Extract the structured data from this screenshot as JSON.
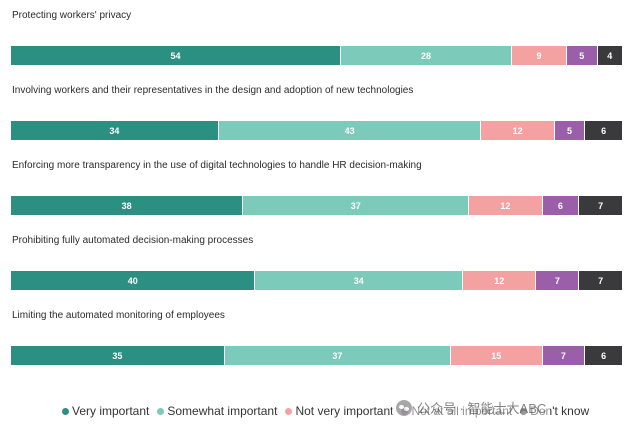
{
  "chart_data": {
    "type": "bar",
    "orientation": "horizontal",
    "stacked": true,
    "percent": true,
    "categories": [
      "Protecting workers' privacy",
      "Involving workers and their representatives in the design and adoption of new technologies",
      "Enforcing more transparency in the use of digital technologies to handle HR decision-making",
      "Prohibiting fully automated decision-making processes",
      "Limiting the automated monitoring of employees"
    ],
    "series": [
      {
        "name": "Very important",
        "color": "#2b8f82",
        "values": [
          54,
          34,
          38,
          40,
          35
        ]
      },
      {
        "name": "Somewhat important",
        "color": "#7ccab9",
        "values": [
          28,
          43,
          37,
          34,
          37
        ]
      },
      {
        "name": "Not very important",
        "color": "#f3a1a1",
        "values": [
          9,
          12,
          12,
          12,
          15
        ]
      },
      {
        "name": "Not at all important",
        "color": "#9b5ea8",
        "values": [
          5,
          5,
          6,
          7,
          7
        ]
      },
      {
        "name": "Don't know",
        "color": "#3a3a3c",
        "values": [
          4,
          6,
          7,
          7,
          6
        ]
      }
    ],
    "legend_position": "bottom",
    "grid": false
  },
  "watermark": {
    "text": "公众号 · 智能士大ABC",
    "icon": "wechat-icon"
  }
}
